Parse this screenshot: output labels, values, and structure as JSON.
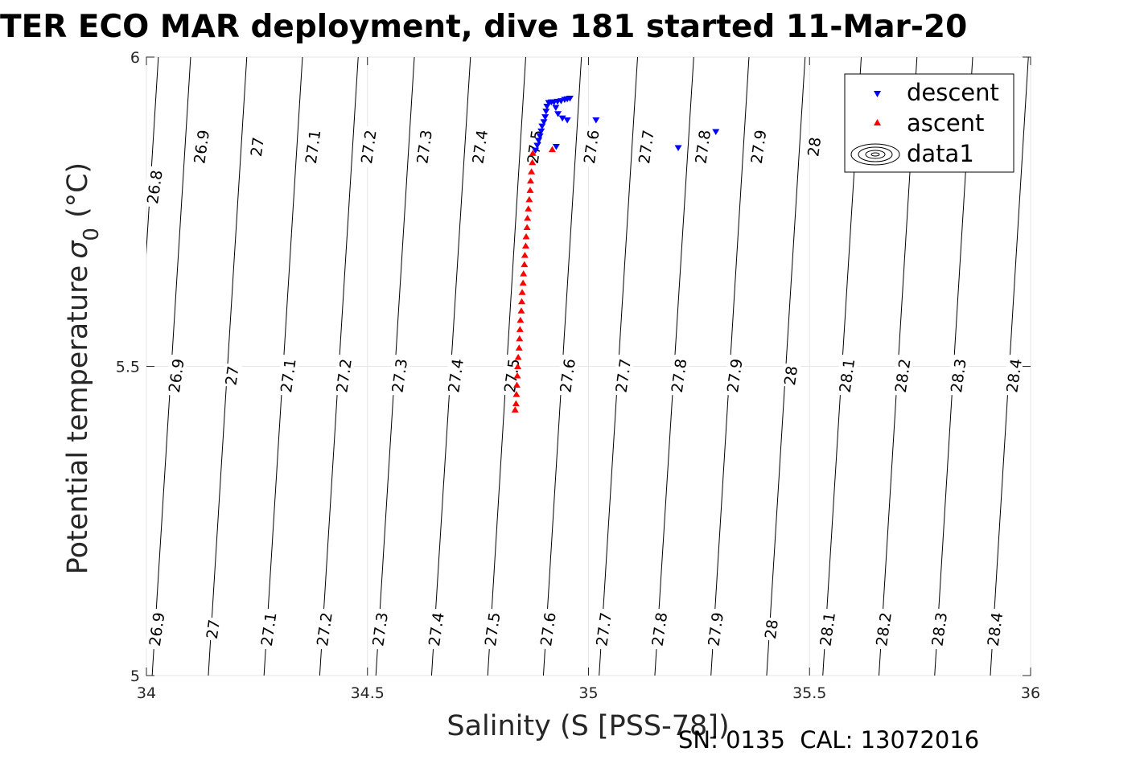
{
  "chart_data": {
    "type": "scatter",
    "title": "TER ECO MAR deployment, dive 181 started 11-Mar-20",
    "xlabel": "Salinity (S [PSS-78])",
    "ylabel_main": "Potential temperature",
    "ylabel_sigma": "σ",
    "ylabel_sub": "0",
    "ylabel_unit": "(°C)",
    "xlim": [
      34,
      36
    ],
    "ylim": [
      5,
      6
    ],
    "x_ticks": [
      "34",
      "34.5",
      "35",
      "35.5",
      "36"
    ],
    "y_ticks": [
      "5",
      "5.5",
      "6"
    ],
    "grid": true,
    "legend_position": "top-right",
    "legend": [
      "descent",
      "ascent",
      "data1"
    ],
    "colors": {
      "descent": "#0000ff",
      "ascent": "#ff0000",
      "contour": "#000000",
      "grid": "#e6e6e6"
    },
    "footer": "SN: 0135  CAL: 13072016",
    "contour_levels": [
      "26.8",
      "26.9",
      "27",
      "27.1",
      "27.2",
      "27.3",
      "27.4",
      "27.5",
      "27.6",
      "27.7",
      "27.8",
      "27.9",
      "28",
      "28.1",
      "28.2",
      "28.3",
      "28.4"
    ],
    "contours": [
      {
        "level": 26.9,
        "s_at_t5": 34.013,
        "s_at_t6": 34.1
      },
      {
        "level": 27.0,
        "s_at_t5": 34.14,
        "s_at_t6": 34.227
      },
      {
        "level": 27.1,
        "s_at_t5": 34.266,
        "s_at_t6": 34.353
      },
      {
        "level": 27.2,
        "s_at_t5": 34.392,
        "s_at_t6": 34.479
      },
      {
        "level": 27.3,
        "s_at_t5": 34.519,
        "s_at_t6": 34.606
      },
      {
        "level": 27.4,
        "s_at_t5": 34.645,
        "s_at_t6": 34.733
      },
      {
        "level": 27.5,
        "s_at_t5": 34.772,
        "s_at_t6": 34.858
      },
      {
        "level": 27.6,
        "s_at_t5": 34.898,
        "s_at_t6": 34.984
      },
      {
        "level": 27.7,
        "s_at_t5": 35.024,
        "s_at_t6": 35.111
      },
      {
        "level": 27.8,
        "s_at_t5": 35.15,
        "s_at_t6": 35.238
      },
      {
        "level": 27.9,
        "s_at_t5": 35.277,
        "s_at_t6": 35.363
      },
      {
        "level": 28.0,
        "s_at_t5": 35.403,
        "s_at_t6": 35.49
      },
      {
        "level": 28.1,
        "s_at_t5": 35.53,
        "s_at_t6": 35.617
      },
      {
        "level": 28.2,
        "s_at_t5": 35.657,
        "s_at_t6": 35.743
      },
      {
        "level": 28.3,
        "s_at_t5": 35.783,
        "s_at_t6": 35.869
      },
      {
        "level": 28.4,
        "s_at_t5": 35.909,
        "s_at_t6": 35.995
      }
    ],
    "contour_labels": [
      {
        "text": "26.8",
        "s": 34.018,
        "t": 5.79
      },
      {
        "text": "26.9",
        "s": 34.124,
        "t": 5.855
      },
      {
        "text": "27",
        "s": 34.25,
        "t": 5.855
      },
      {
        "text": "27.1",
        "s": 34.376,
        "t": 5.855
      },
      {
        "text": "27.2",
        "s": 34.502,
        "t": 5.855
      },
      {
        "text": "27.3",
        "s": 34.628,
        "t": 5.855
      },
      {
        "text": "27.4",
        "s": 34.754,
        "t": 5.855
      },
      {
        "text": "27.5",
        "s": 34.878,
        "t": 5.855
      },
      {
        "text": "27.6",
        "s": 35.006,
        "t": 5.855
      },
      {
        "text": "27.7",
        "s": 35.13,
        "t": 5.855
      },
      {
        "text": "27.8",
        "s": 35.258,
        "t": 5.855
      },
      {
        "text": "27.9",
        "s": 35.384,
        "t": 5.855
      },
      {
        "text": "28",
        "s": 35.51,
        "t": 5.855
      },
      {
        "text": "26.9",
        "s": 34.067,
        "t": 5.485
      },
      {
        "text": "27",
        "s": 34.193,
        "t": 5.485
      },
      {
        "text": "27.1",
        "s": 34.32,
        "t": 5.485
      },
      {
        "text": "27.2",
        "s": 34.446,
        "t": 5.485
      },
      {
        "text": "27.3",
        "s": 34.572,
        "t": 5.485
      },
      {
        "text": "27.4",
        "s": 34.699,
        "t": 5.485
      },
      {
        "text": "27.5",
        "s": 34.826,
        "t": 5.485
      },
      {
        "text": "27.6",
        "s": 34.952,
        "t": 5.485
      },
      {
        "text": "27.7",
        "s": 35.078,
        "t": 5.485
      },
      {
        "text": "27.8",
        "s": 35.204,
        "t": 5.485
      },
      {
        "text": "27.9",
        "s": 35.33,
        "t": 5.485
      },
      {
        "text": "28",
        "s": 35.457,
        "t": 5.485
      },
      {
        "text": "28.1",
        "s": 35.584,
        "t": 5.485
      },
      {
        "text": "28.2",
        "s": 35.71,
        "t": 5.485
      },
      {
        "text": "28.3",
        "s": 35.836,
        "t": 5.485
      },
      {
        "text": "28.4",
        "s": 35.962,
        "t": 5.485
      },
      {
        "text": "26.9",
        "s": 34.023,
        "t": 5.075
      },
      {
        "text": "27",
        "s": 34.15,
        "t": 5.075
      },
      {
        "text": "27.1",
        "s": 34.276,
        "t": 5.075
      },
      {
        "text": "27.2",
        "s": 34.402,
        "t": 5.075
      },
      {
        "text": "27.3",
        "s": 34.528,
        "t": 5.075
      },
      {
        "text": "27.4",
        "s": 34.655,
        "t": 5.075
      },
      {
        "text": "27.5",
        "s": 34.782,
        "t": 5.075
      },
      {
        "text": "27.6",
        "s": 34.908,
        "t": 5.075
      },
      {
        "text": "27.7",
        "s": 35.034,
        "t": 5.075
      },
      {
        "text": "27.8",
        "s": 35.16,
        "t": 5.075
      },
      {
        "text": "27.9",
        "s": 35.287,
        "t": 5.075
      },
      {
        "text": "28",
        "s": 35.413,
        "t": 5.075
      },
      {
        "text": "28.1",
        "s": 35.54,
        "t": 5.075
      },
      {
        "text": "28.2",
        "s": 35.667,
        "t": 5.075
      },
      {
        "text": "28.3",
        "s": 35.793,
        "t": 5.075
      },
      {
        "text": "28.4",
        "s": 35.919,
        "t": 5.075
      }
    ],
    "series": [
      {
        "name": "descent",
        "marker": "triangle-down",
        "points": [
          [
            34.946,
            5.931
          ],
          [
            34.952,
            5.932
          ],
          [
            34.958,
            5.933
          ],
          [
            34.938,
            5.929
          ],
          [
            34.93,
            5.928
          ],
          [
            34.922,
            5.927
          ],
          [
            34.916,
            5.927
          ],
          [
            34.91,
            5.926
          ],
          [
            34.906,
            5.92
          ],
          [
            34.904,
            5.912
          ],
          [
            34.902,
            5.903
          ],
          [
            34.899,
            5.895
          ],
          [
            34.895,
            5.888
          ],
          [
            34.893,
            5.88
          ],
          [
            34.89,
            5.872
          ],
          [
            34.887,
            5.865
          ],
          [
            34.884,
            5.857
          ],
          [
            34.88,
            5.849
          ],
          [
            34.926,
            5.918
          ],
          [
            34.931,
            5.908
          ],
          [
            34.941,
            5.901
          ],
          [
            34.952,
            5.898
          ],
          [
            35.017,
            5.898
          ],
          [
            34.927,
            5.855
          ],
          [
            35.203,
            5.853
          ],
          [
            35.288,
            5.879
          ]
        ]
      },
      {
        "name": "ascent",
        "marker": "triangle-up",
        "points": [
          [
            34.874,
            5.845
          ],
          [
            34.873,
            5.83
          ],
          [
            34.871,
            5.815
          ],
          [
            34.869,
            5.8
          ],
          [
            34.868,
            5.785
          ],
          [
            34.866,
            5.77
          ],
          [
            34.864,
            5.755
          ],
          [
            34.862,
            5.74
          ],
          [
            34.861,
            5.725
          ],
          [
            34.859,
            5.71
          ],
          [
            34.858,
            5.695
          ],
          [
            34.856,
            5.68
          ],
          [
            34.855,
            5.665
          ],
          [
            34.853,
            5.65
          ],
          [
            34.852,
            5.635
          ],
          [
            34.85,
            5.62
          ],
          [
            34.849,
            5.605
          ],
          [
            34.848,
            5.59
          ],
          [
            34.846,
            5.575
          ],
          [
            34.845,
            5.56
          ],
          [
            34.844,
            5.545
          ],
          [
            34.843,
            5.53
          ],
          [
            34.841,
            5.515
          ],
          [
            34.84,
            5.5
          ],
          [
            34.839,
            5.485
          ],
          [
            34.838,
            5.47
          ],
          [
            34.837,
            5.455
          ],
          [
            34.836,
            5.44
          ],
          [
            34.834,
            5.43
          ],
          [
            34.918,
            5.851
          ]
        ]
      }
    ]
  }
}
